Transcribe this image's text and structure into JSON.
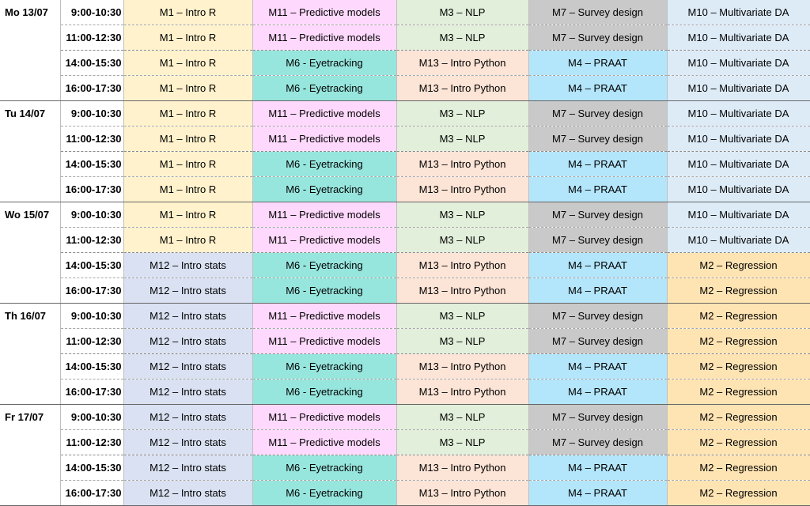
{
  "modules": {
    "M1": {
      "label": "M1 – Intro R",
      "color": "#fff2cc"
    },
    "M11": {
      "label": "M11 – Predictive models",
      "color": "#ffd9fd"
    },
    "M3": {
      "label": "M3 – NLP",
      "color": "#e2efda"
    },
    "M7": {
      "label": "M7 – Survey design",
      "color": "#c9c9c9"
    },
    "M10": {
      "label": "M10 – Multivariate DA",
      "color": "#ddebf7"
    },
    "M6": {
      "label": "M6 - Eyetracking",
      "color": "#97e6de"
    },
    "M13": {
      "label": "M13 – Intro Python",
      "color": "#fce4d6"
    },
    "M4": {
      "label": "M4 – PRAAT",
      "color": "#b3e5fb"
    },
    "M12": {
      "label": "M12 – Intro stats",
      "color": "#d9e1f2"
    },
    "M2": {
      "label": "M2 – Regression",
      "color": "#ffe4b3"
    }
  },
  "days": [
    {
      "label": "Mo 13/07",
      "slots": [
        {
          "time": "9:00-10:30",
          "cells": [
            "M1",
            "M11",
            "M3",
            "M7",
            "M10"
          ]
        },
        {
          "time": "11:00-12:30",
          "cells": [
            "M1",
            "M11",
            "M3",
            "M7",
            "M10"
          ]
        },
        {
          "time": "14:00-15:30",
          "cells": [
            "M1",
            "M6",
            "M13",
            "M4",
            "M10"
          ]
        },
        {
          "time": "16:00-17:30",
          "cells": [
            "M1",
            "M6",
            "M13",
            "M4",
            "M10"
          ]
        }
      ]
    },
    {
      "label": "Tu 14/07",
      "slots": [
        {
          "time": "9:00-10:30",
          "cells": [
            "M1",
            "M11",
            "M3",
            "M7",
            "M10"
          ]
        },
        {
          "time": "11:00-12:30",
          "cells": [
            "M1",
            "M11",
            "M3",
            "M7",
            "M10"
          ]
        },
        {
          "time": "14:00-15:30",
          "cells": [
            "M1",
            "M6",
            "M13",
            "M4",
            "M10"
          ]
        },
        {
          "time": "16:00-17:30",
          "cells": [
            "M1",
            "M6",
            "M13",
            "M4",
            "M10"
          ]
        }
      ]
    },
    {
      "label": "Wo 15/07",
      "slots": [
        {
          "time": "9:00-10:30",
          "cells": [
            "M1",
            "M11",
            "M3",
            "M7",
            "M10"
          ]
        },
        {
          "time": "11:00-12:30",
          "cells": [
            "M1",
            "M11",
            "M3",
            "M7",
            "M10"
          ]
        },
        {
          "time": "14:00-15:30",
          "cells": [
            "M12",
            "M6",
            "M13",
            "M4",
            "M2"
          ]
        },
        {
          "time": "16:00-17:30",
          "cells": [
            "M12",
            "M6",
            "M13",
            "M4",
            "M2"
          ]
        }
      ]
    },
    {
      "label": "Th 16/07",
      "slots": [
        {
          "time": "9:00-10:30",
          "cells": [
            "M12",
            "M11",
            "M3",
            "M7",
            "M2"
          ]
        },
        {
          "time": "11:00-12:30",
          "cells": [
            "M12",
            "M11",
            "M3",
            "M7",
            "M2"
          ]
        },
        {
          "time": "14:00-15:30",
          "cells": [
            "M12",
            "M6",
            "M13",
            "M4",
            "M2"
          ]
        },
        {
          "time": "16:00-17:30",
          "cells": [
            "M12",
            "M6",
            "M13",
            "M4",
            "M2"
          ]
        }
      ]
    },
    {
      "label": "Fr 17/07",
      "slots": [
        {
          "time": "9:00-10:30",
          "cells": [
            "M12",
            "M11",
            "M3",
            "M7",
            "M2"
          ]
        },
        {
          "time": "11:00-12:30",
          "cells": [
            "M12",
            "M11",
            "M3",
            "M7",
            "M2"
          ]
        },
        {
          "time": "14:00-15:30",
          "cells": [
            "M12",
            "M6",
            "M13",
            "M4",
            "M2"
          ]
        },
        {
          "time": "16:00-17:30",
          "cells": [
            "M12",
            "M6",
            "M13",
            "M4",
            "M2"
          ]
        }
      ]
    }
  ]
}
